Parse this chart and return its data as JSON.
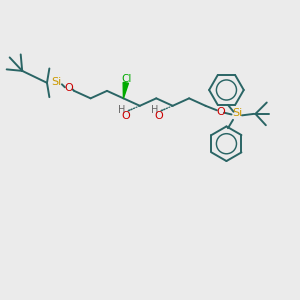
{
  "bg_color": "#ebebeb",
  "bond_color": "#2a6565",
  "si_color": "#cc9900",
  "o_color": "#cc0000",
  "cl_color": "#00aa00",
  "oh_h_color": "#666666",
  "oh_o_color": "#cc0000",
  "figsize": [
    3.0,
    3.0
  ],
  "dpi": 100,
  "xlim": [
    0,
    10
  ],
  "ylim": [
    0,
    10
  ]
}
